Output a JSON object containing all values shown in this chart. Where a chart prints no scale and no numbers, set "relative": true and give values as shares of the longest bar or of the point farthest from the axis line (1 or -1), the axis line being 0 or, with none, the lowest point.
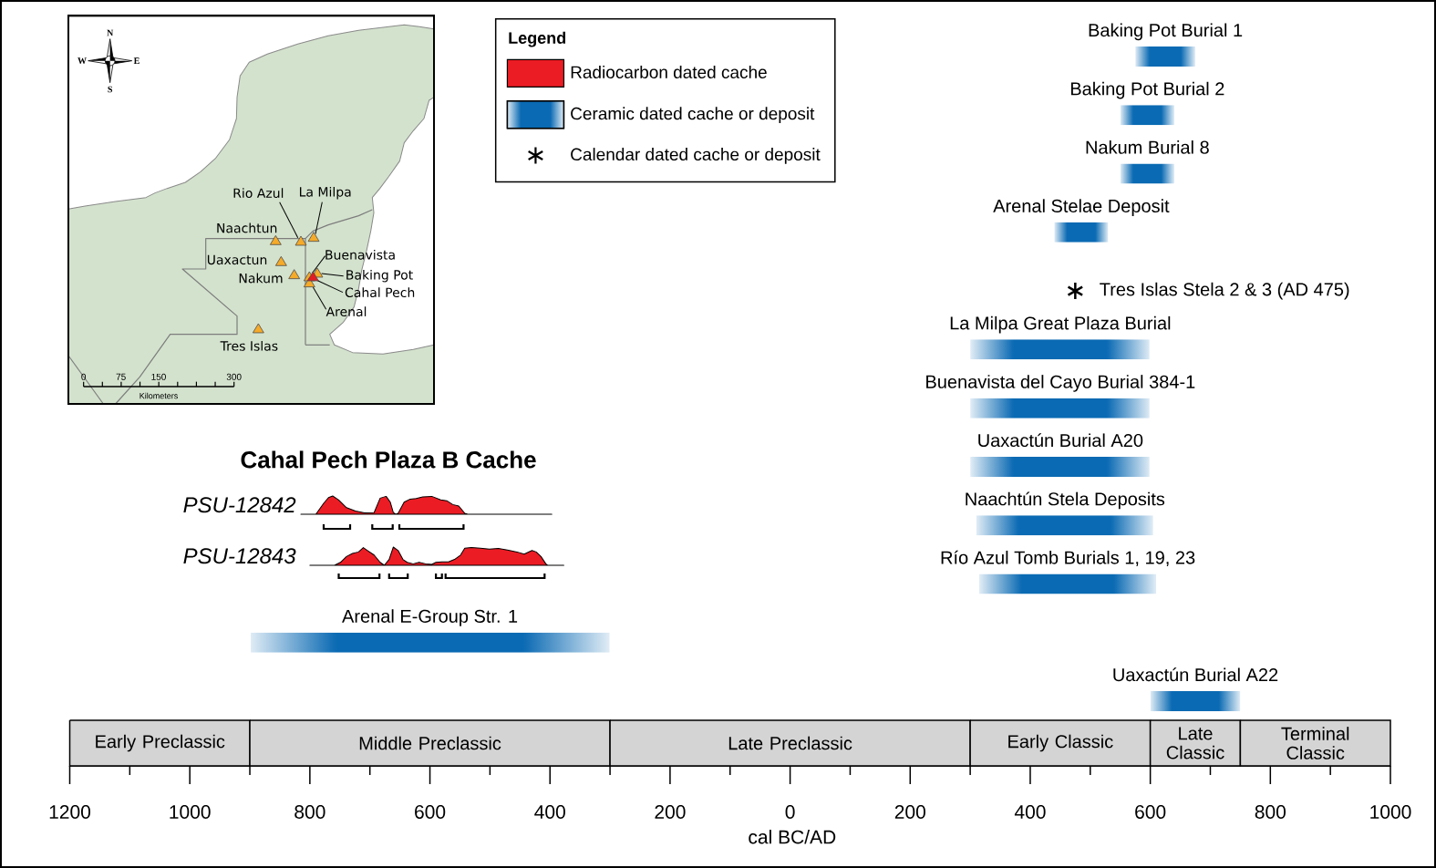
{
  "chart_data": [
    {
      "type": "other",
      "annotations": [
        "N",
        "E",
        "S",
        "W",
        "Rio Azul",
        "La Milpa",
        "Naachtun",
        "Uaxactun",
        "Nakum",
        "Buenavista",
        "Baking Pot",
        "Cahal Pech",
        "Arenal",
        "Tres Islas",
        "0",
        "75",
        "150",
        "300",
        "Kilometers"
      ]
    },
    {
      "type": "area",
      "title": "Cahal Pech Plaza B Cache",
      "ylabel": "PSU-12842",
      "relative": true,
      "xlim": [
        -1200,
        1000
      ],
      "tick_labels": false,
      "series": [
        {
          "name": "Radiocarbon dated cache",
          "color": "#ec1c24",
          "x": [
            -815,
            -790,
            -777,
            -769,
            -762,
            -752,
            -739,
            -724,
            -709,
            -693,
            -683,
            -673,
            -666,
            -661,
            -657,
            -653,
            -643,
            -633,
            -623,
            -612,
            -597,
            -582,
            -572,
            -562,
            -552,
            -542,
            -537,
            -397
          ],
          "values": [
            0,
            0,
            0.6,
            0.91,
            1,
            0.78,
            0.36,
            0.17,
            0.07,
            0.09,
            0.88,
            0.98,
            0.66,
            0.09,
            0,
            0.05,
            0.66,
            0.83,
            0.86,
            0.95,
            0.98,
            0.79,
            0.74,
            0.53,
            0.45,
            0.05,
            0,
            0
          ]
        }
      ]
    },
    {
      "type": "area",
      "ylabel": "PSU-12843",
      "relative": true,
      "xlim": [
        -1200,
        1000
      ],
      "tick_labels": false,
      "series": [
        {
          "color": "#ec1c24",
          "x": [
            -800,
            -759,
            -749,
            -739,
            -729,
            -719,
            -711,
            -704,
            -693,
            -683,
            -676,
            -668,
            -661,
            -653,
            -645,
            -638,
            -628,
            -618,
            -607,
            -597,
            -590,
            -580,
            -569,
            -559,
            -549,
            -542,
            -531,
            -516,
            -501,
            -486,
            -471,
            -455,
            -443,
            -430,
            -423,
            -415,
            -407,
            -404,
            -377
          ],
          "values": [
            0,
            0,
            0.16,
            0.48,
            0.65,
            0.73,
            0.97,
            0.81,
            0.56,
            0.16,
            0,
            0.32,
            1,
            0.81,
            0.32,
            0.16,
            0.08,
            0.16,
            0.08,
            0.05,
            0.16,
            0.19,
            0.19,
            0.32,
            0.56,
            0.94,
            0.97,
            0.94,
            0.89,
            0.92,
            0.84,
            0.73,
            0.61,
            0.81,
            0.73,
            0.48,
            0.08,
            0,
            0
          ]
        }
      ]
    },
    {
      "type": "bar",
      "orientation": "horizontal",
      "legend": "top",
      "legend_title": "Legend",
      "xlabel": "cal BC/AD",
      "categories": [
        "Baking Pot Burial 1",
        "Baking Pot Burial 2",
        "Nakum Burial 8",
        "Arenal Stelae Deposit",
        "Tres Islas Stela 2 & 3 (AD 475)",
        "La Milpa Great Plaza Burial",
        "Buenavista del Cayo Burial 384-1",
        "Uaxactún Burial A20",
        "Naachtún Stela Deposits",
        "Río Azul Tomb Burials 1, 19, 23",
        "Arenal E-Group Str. 1",
        "Uaxactún Burial A22"
      ],
      "series": [
        {
          "name": "Ceramic dated cache or deposit",
          "type": "bar",
          "color": "#0a6ab3",
          "base": [
            575,
            550,
            550,
            440,
            null,
            300,
            300,
            300,
            310,
            315,
            -900,
            600
          ],
          "values": [
            100,
            90,
            90,
            90,
            null,
            300,
            300,
            300,
            295,
            295,
            600,
            150
          ]
        },
        {
          "name": "Calendar dated cache or deposit",
          "type": "scatter",
          "marker": "cross",
          "color": "#000000",
          "values": [
            null,
            null,
            null,
            null,
            475,
            null,
            null,
            null,
            null,
            null,
            null,
            null
          ]
        }
      ],
      "xlim": [
        -1200,
        1000
      ],
      "xticks": [
        {
          "value": -1200,
          "label": "1200"
        },
        {
          "value": -1000,
          "label": "1000"
        },
        {
          "value": -800,
          "label": "800"
        },
        {
          "value": -600,
          "label": "600"
        },
        {
          "value": -400,
          "label": "400"
        },
        {
          "value": -200,
          "label": "200"
        },
        0,
        200,
        400,
        600,
        800,
        1000
      ]
    },
    {
      "type": "bar",
      "orientation": "horizontal",
      "legend": false,
      "xlim": [
        -1200,
        1000
      ],
      "tick_labels": false,
      "categories": [
        null
      ],
      "series": [
        {
          "name": "Early Preclassic",
          "color": "#d4d4d4",
          "base": [
            -1200
          ],
          "values": [
            300
          ]
        },
        {
          "name": "Middle Preclassic",
          "color": "#d4d4d4",
          "base": [
            -900
          ],
          "values": [
            600
          ]
        },
        {
          "name": "Late Preclassic",
          "color": "#d4d4d4",
          "base": [
            -300
          ],
          "values": [
            600
          ]
        },
        {
          "name": "Early Classic",
          "color": "#d4d4d4",
          "base": [
            300
          ],
          "values": [
            300
          ]
        },
        {
          "name": "Late Classic",
          "color": "#d4d4d4",
          "base": [
            600
          ],
          "values": [
            150
          ]
        },
        {
          "name": "Terminal Classic",
          "color": "#d4d4d4",
          "base": [
            750
          ],
          "values": [
            250
          ]
        }
      ]
    }
  ]
}
